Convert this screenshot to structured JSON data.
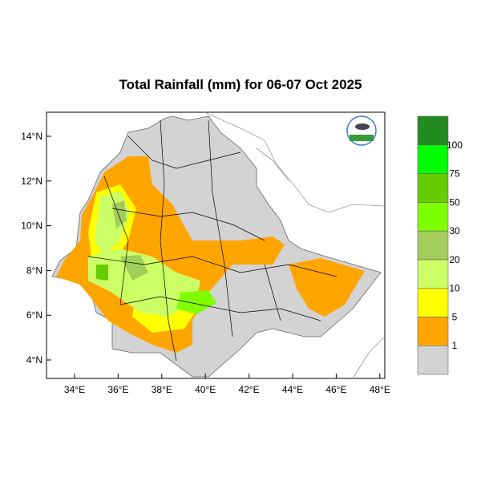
{
  "title": "Total Rainfall (mm) for 06-07 Oct 2025",
  "x_ticks": [
    "34°E",
    "36°E",
    "38°E",
    "40°E",
    "42°E",
    "44°E",
    "46°E",
    "48°E"
  ],
  "y_ticks": [
    "4°N",
    "6°N",
    "8°N",
    "10°N",
    "12°N",
    "14°N"
  ],
  "legend": {
    "labels": [
      "1",
      "5",
      "10",
      "20",
      "30",
      "50",
      "75",
      "100"
    ],
    "colors": [
      "#d3d3d3",
      "#ffa500",
      "#ffff00",
      "#ccff66",
      "#a2cd5a",
      "#7fff00",
      "#66cc00",
      "#00ff00",
      "#228b22"
    ]
  },
  "colors": {
    "land": "#d3d3d3",
    "border": "#000000",
    "neighbor": "#999999"
  }
}
